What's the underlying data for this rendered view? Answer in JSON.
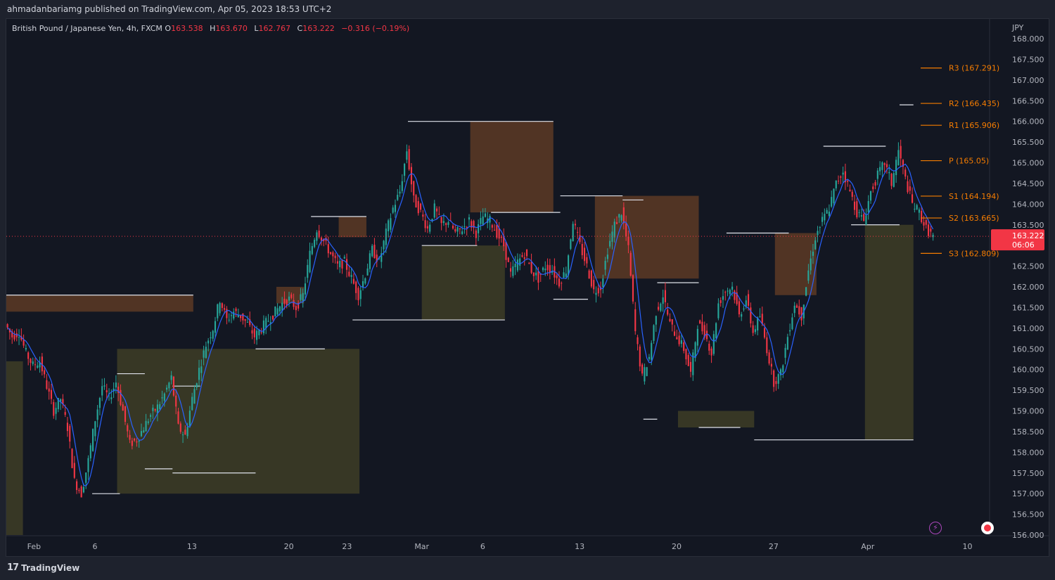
{
  "header": {
    "publish_text": "ahmadanbariamg published on TradingView.com, Apr 05, 2023 18:53 UTC+2"
  },
  "legend": {
    "title": "British Pound / Japanese Yen, 4h, FXCM",
    "open_label": "O",
    "open": "163.538",
    "high_label": "H",
    "high": "163.670",
    "low_label": "L",
    "low": "162.767",
    "close_label": "C",
    "close": "163.222",
    "change": "−0.316 (−0.19%)"
  },
  "footer": {
    "brand": "TradingView"
  },
  "chart_data": {
    "type": "candlestick",
    "currency": "JPY",
    "ylim": [
      156.0,
      168.0
    ],
    "yticks": [
      "168.000",
      "167.500",
      "167.000",
      "166.500",
      "166.000",
      "165.500",
      "165.000",
      "164.500",
      "164.000",
      "163.500",
      "163.000",
      "162.500",
      "162.000",
      "161.500",
      "161.000",
      "160.500",
      "160.000",
      "159.500",
      "159.000",
      "158.500",
      "158.000",
      "157.500",
      "157.000",
      "156.500",
      "156.000"
    ],
    "xlim_day": [
      0,
      71
    ],
    "xticks": [
      {
        "label": "Feb",
        "day": 2
      },
      {
        "label": "6",
        "day": 6.4
      },
      {
        "label": "13",
        "day": 13.4
      },
      {
        "label": "20",
        "day": 20.4
      },
      {
        "label": "23",
        "day": 24.6
      },
      {
        "label": "Mar",
        "day": 30.0
      },
      {
        "label": "6",
        "day": 34.4
      },
      {
        "label": "13",
        "day": 41.4
      },
      {
        "label": "20",
        "day": 48.4
      },
      {
        "label": "27",
        "day": 55.4
      },
      {
        "label": "Apr",
        "day": 62.2
      },
      {
        "label": "10",
        "day": 69.4
      }
    ],
    "last_price": {
      "value": 163.222,
      "label": "163.222",
      "countdown": "06:06",
      "color": "#f23645"
    },
    "pivots": [
      {
        "label": "R3 (167.291)",
        "value": 167.291
      },
      {
        "label": "R2 (166.435)",
        "value": 166.435
      },
      {
        "label": "R1 (165.906)",
        "value": 165.906
      },
      {
        "label": "P (165.05)",
        "value": 165.05
      },
      {
        "label": "S1 (164.194)",
        "value": 164.194
      },
      {
        "label": "S2 (163.665)",
        "value": 163.665
      },
      {
        "label": "S3 (162.809)",
        "value": 162.809
      }
    ],
    "pivot_color": "#f57c00",
    "close_path": [
      [
        0,
        161.1
      ],
      [
        0.5,
        160.8
      ],
      [
        1,
        160.9
      ],
      [
        1.5,
        160.4
      ],
      [
        2,
        160.1
      ],
      [
        2.5,
        160.2
      ],
      [
        3,
        159.6
      ],
      [
        3.5,
        159.0
      ],
      [
        4,
        159.3
      ],
      [
        4.5,
        158.6
      ],
      [
        5,
        157.3
      ],
      [
        5.5,
        157.0
      ],
      [
        6,
        157.8
      ],
      [
        6.5,
        158.8
      ],
      [
        7,
        159.6
      ],
      [
        7.5,
        159.3
      ],
      [
        8,
        159.7
      ],
      [
        8.5,
        159.0
      ],
      [
        9,
        158.2
      ],
      [
        9.5,
        158.3
      ],
      [
        10,
        158.6
      ],
      [
        10.5,
        158.9
      ],
      [
        11,
        159.1
      ],
      [
        11.5,
        159.4
      ],
      [
        12,
        159.8
      ],
      [
        12.5,
        158.6
      ],
      [
        13,
        158.4
      ],
      [
        13.5,
        159.3
      ],
      [
        14,
        160.0
      ],
      [
        14.5,
        160.6
      ],
      [
        15,
        161.0
      ],
      [
        15.5,
        161.7
      ],
      [
        16,
        161.2
      ],
      [
        16.5,
        161.4
      ],
      [
        17,
        161.3
      ],
      [
        17.5,
        161.1
      ],
      [
        18,
        160.8
      ],
      [
        18.5,
        161.0
      ],
      [
        19,
        161.2
      ],
      [
        19.5,
        161.4
      ],
      [
        20,
        161.6
      ],
      [
        20.5,
        161.7
      ],
      [
        21,
        161.5
      ],
      [
        21.5,
        161.8
      ],
      [
        22,
        162.8
      ],
      [
        22.5,
        163.4
      ],
      [
        23,
        163.1
      ],
      [
        23.5,
        162.8
      ],
      [
        24,
        162.5
      ],
      [
        24.5,
        162.6
      ],
      [
        25,
        162.2
      ],
      [
        25.5,
        161.8
      ],
      [
        26,
        162.3
      ],
      [
        26.5,
        162.9
      ],
      [
        27,
        162.6
      ],
      [
        27.5,
        163.3
      ],
      [
        28,
        163.9
      ],
      [
        28.5,
        164.3
      ],
      [
        29,
        165.3
      ],
      [
        29.5,
        164.1
      ],
      [
        30,
        163.8
      ],
      [
        30.5,
        163.4
      ],
      [
        31,
        163.9
      ],
      [
        31.5,
        163.5
      ],
      [
        32,
        163.6
      ],
      [
        32.5,
        163.3
      ],
      [
        33,
        163.4
      ],
      [
        33.5,
        163.6
      ],
      [
        34,
        163.3
      ],
      [
        34.5,
        163.7
      ],
      [
        35,
        163.6
      ],
      [
        35.5,
        163.3
      ],
      [
        36,
        163.0
      ],
      [
        36.5,
        162.3
      ],
      [
        37,
        162.6
      ],
      [
        37.5,
        162.8
      ],
      [
        38,
        162.4
      ],
      [
        38.5,
        162.2
      ],
      [
        39,
        162.5
      ],
      [
        39.5,
        162.4
      ],
      [
        40,
        162.1
      ],
      [
        40.5,
        162.4
      ],
      [
        41,
        163.6
      ],
      [
        41.5,
        163.0
      ],
      [
        42,
        162.5
      ],
      [
        42.5,
        161.9
      ],
      [
        43,
        162.0
      ],
      [
        43.5,
        162.9
      ],
      [
        44,
        163.5
      ],
      [
        44.5,
        163.8
      ],
      [
        45,
        162.9
      ],
      [
        45.5,
        160.9
      ],
      [
        46,
        159.8
      ],
      [
        46.5,
        160.3
      ],
      [
        47,
        161.4
      ],
      [
        47.5,
        161.8
      ],
      [
        48,
        161.1
      ],
      [
        48.5,
        160.8
      ],
      [
        49,
        160.5
      ],
      [
        49.5,
        159.9
      ],
      [
        50,
        161.1
      ],
      [
        50.5,
        160.9
      ],
      [
        51,
        160.4
      ],
      [
        51.5,
        161.6
      ],
      [
        52,
        161.9
      ],
      [
        52.5,
        162.0
      ],
      [
        53,
        161.3
      ],
      [
        53.5,
        161.7
      ],
      [
        54,
        160.9
      ],
      [
        54.5,
        161.3
      ],
      [
        55,
        160.5
      ],
      [
        55.5,
        159.7
      ],
      [
        56,
        159.9
      ],
      [
        56.5,
        160.8
      ],
      [
        57,
        161.6
      ],
      [
        57.5,
        161.3
      ],
      [
        58,
        162.4
      ],
      [
        58.5,
        163.2
      ],
      [
        59,
        163.6
      ],
      [
        59.5,
        163.9
      ],
      [
        60,
        164.5
      ],
      [
        60.5,
        164.8
      ],
      [
        61,
        164.3
      ],
      [
        61.5,
        163.8
      ],
      [
        62,
        163.6
      ],
      [
        62.5,
        164.3
      ],
      [
        63,
        164.7
      ],
      [
        63.5,
        165.0
      ],
      [
        64,
        164.5
      ],
      [
        64.5,
        165.3
      ],
      [
        65,
        164.6
      ],
      [
        65.5,
        164.0
      ],
      [
        66,
        163.8
      ],
      [
        66.5,
        163.4
      ],
      [
        67,
        163.22
      ]
    ],
    "white_steps": [
      [
        0,
        161.8,
        13.5
      ],
      [
        6.2,
        157.0,
        8.2
      ],
      [
        8.0,
        159.9,
        10.0
      ],
      [
        10.0,
        157.6,
        12.0
      ],
      [
        12.0,
        159.6,
        14.0
      ],
      [
        12.0,
        157.5,
        18.0
      ],
      [
        18.0,
        160.5,
        23.0
      ],
      [
        22.0,
        163.7,
        26.0
      ],
      [
        25.0,
        161.2,
        36.0
      ],
      [
        29.0,
        166.0,
        39.5
      ],
      [
        30.0,
        163.0,
        34.0
      ],
      [
        35.0,
        163.8,
        40.0
      ],
      [
        39.5,
        161.7,
        42.0
      ],
      [
        40.0,
        164.2,
        44.5
      ],
      [
        44.5,
        164.1,
        46.0
      ],
      [
        46.0,
        158.8,
        47.0
      ],
      [
        47.0,
        162.1,
        50.0
      ],
      [
        50.0,
        158.6,
        53.0
      ],
      [
        52.0,
        163.3,
        56.5
      ],
      [
        54.0,
        158.3,
        65.5
      ],
      [
        59.0,
        165.4,
        63.5
      ],
      [
        61.0,
        163.5,
        64.5
      ],
      [
        64.5,
        166.4,
        65.5
      ]
    ],
    "cloud_bands": [
      {
        "x0": 0,
        "x1": 13.5,
        "top": 161.8,
        "bot": 161.4,
        "fill": "#5d3a24"
      },
      {
        "x0": 19.5,
        "x1": 21.5,
        "top": 162.0,
        "bot": 161.6,
        "fill": "#5d3a24"
      },
      {
        "x0": 33.5,
        "x1": 39.5,
        "top": 166.0,
        "bot": 163.8,
        "fill": "#5d3a24"
      },
      {
        "x0": 42.5,
        "x1": 50.0,
        "top": 164.2,
        "bot": 162.2,
        "fill": "#5d3a24"
      },
      {
        "x0": 55.5,
        "x1": 58.5,
        "top": 163.3,
        "bot": 161.8,
        "fill": "#5d3a24"
      },
      {
        "x0": 24.0,
        "x1": 26.0,
        "top": 163.7,
        "bot": 163.2,
        "fill": "#5d3a24"
      },
      {
        "x0": 0,
        "x1": 1.2,
        "top": 160.2,
        "bot": 156.0,
        "fill": "#3e3d26"
      },
      {
        "x0": 8.0,
        "x1": 25.5,
        "top": 160.5,
        "bot": 157.0,
        "fill": "#3e3d26"
      },
      {
        "x0": 30.0,
        "x1": 36.0,
        "top": 163.0,
        "bot": 161.2,
        "fill": "#3e3d26"
      },
      {
        "x0": 48.5,
        "x1": 54.0,
        "top": 159.0,
        "bot": 158.6,
        "fill": "#3e3d26"
      },
      {
        "x0": 62.0,
        "x1": 65.5,
        "top": 163.5,
        "bot": 158.3,
        "fill": "#3e3d26"
      }
    ]
  }
}
